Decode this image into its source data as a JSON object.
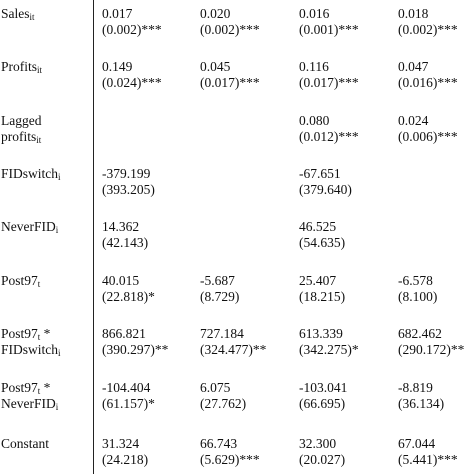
{
  "rows": [
    {
      "label": "Sales",
      "sub": "it",
      "label2": "",
      "sub2": "",
      "cells": [
        [
          "0.017",
          "(0.002)***"
        ],
        [
          "0.020",
          "(0.002)***"
        ],
        [
          "0.016",
          "(0.001)***"
        ],
        [
          "0.018",
          "(0.002)***"
        ]
      ]
    },
    {
      "label": "Profits",
      "sub": "it",
      "label2": "",
      "sub2": "",
      "cells": [
        [
          "0.149",
          "(0.024)***"
        ],
        [
          "0.045",
          "(0.017)***"
        ],
        [
          "0.116",
          "(0.017)***"
        ],
        [
          "0.047",
          "(0.016)***"
        ]
      ]
    },
    {
      "label": "Lagged",
      "sub": "",
      "label2": "profits",
      "sub2": "it",
      "cells": [
        [
          "",
          ""
        ],
        [
          "",
          ""
        ],
        [
          "0.080",
          "(0.012)***"
        ],
        [
          "0.024",
          "(0.006)***"
        ]
      ]
    },
    {
      "label": "FIDswitch",
      "sub": "i",
      "label2": "",
      "sub2": "",
      "cells": [
        [
          "-379.199",
          "(393.205)"
        ],
        [
          "",
          ""
        ],
        [
          "-67.651",
          "(379.640)"
        ],
        [
          "",
          ""
        ]
      ]
    },
    {
      "label": "NeverFID",
      "sub": "i",
      "label2": "",
      "sub2": "",
      "cells": [
        [
          "14.362",
          "(42.143)"
        ],
        [
          "",
          ""
        ],
        [
          "46.525",
          "(54.635)"
        ],
        [
          "",
          ""
        ]
      ]
    },
    {
      "label": "Post97",
      "sub": "t",
      "label2": "",
      "sub2": "",
      "cells": [
        [
          "40.015",
          "(22.818)*"
        ],
        [
          "-5.687",
          "(8.729)"
        ],
        [
          "25.407",
          "(18.215)"
        ],
        [
          "-6.578",
          "(8.100)"
        ]
      ]
    },
    {
      "label": "Post97",
      "sub": "t",
      "label2": "FIDswitch",
      "sub2": "i",
      "mid": " *",
      "cells": [
        [
          "866.821",
          "(390.297)**"
        ],
        [
          "727.184",
          "(324.477)**"
        ],
        [
          "613.339",
          "(342.275)*"
        ],
        [
          "682.462",
          "(290.172)**"
        ]
      ]
    },
    {
      "label": "Post97",
      "sub": "t",
      "label2": "NeverFID",
      "sub2": "i",
      "mid": " *",
      "cells": [
        [
          "-104.404",
          "(61.157)*"
        ],
        [
          "6.075",
          "(27.762)"
        ],
        [
          "-103.041",
          "(66.695)"
        ],
        [
          "-8.819",
          "(36.134)"
        ]
      ]
    },
    {
      "label": "Constant",
      "sub": "",
      "label2": "",
      "sub2": "",
      "cells": [
        [
          "31.324",
          "(24.218)"
        ],
        [
          "66.743",
          "(5.629)***"
        ],
        [
          "32.300",
          "(20.027)"
        ],
        [
          "67.044",
          "(5.441)***"
        ]
      ]
    }
  ]
}
